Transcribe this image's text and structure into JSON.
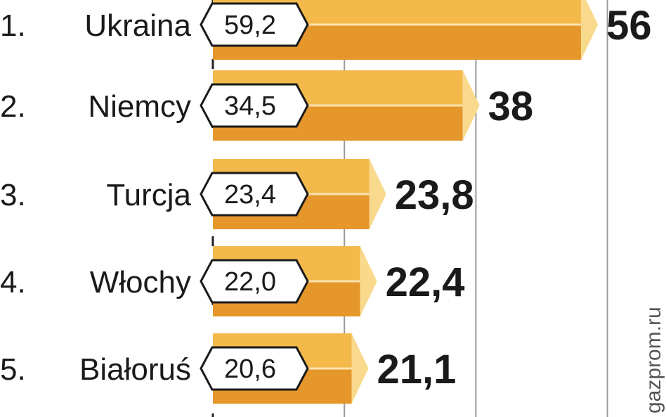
{
  "chart_data": {
    "type": "bar",
    "categories": [
      "Ukraina",
      "Niemcy",
      "Turcja",
      "Włochy",
      "Białoruś"
    ],
    "ranks": [
      "1.",
      "2.",
      "3.",
      "4.",
      "5."
    ],
    "series": [
      {
        "values": [
          59.2,
          34.5,
          23.4,
          22.0,
          20.6
        ]
      },
      {
        "values": [
          56,
          38,
          23.8,
          22.4,
          21.1
        ]
      }
    ],
    "previous_labels": [
      "59,2",
      "34,5",
      "23,4",
      "22,0",
      "20,6"
    ],
    "current_labels": [
      "56",
      "38",
      "23,8",
      "22,4",
      "21,1"
    ],
    "source": "gazprom.ru",
    "grid": true
  },
  "colors": {
    "bar_top": "#f3b94a",
    "bar_bottom": "#e5972c",
    "bar_divider": "#fbe3ad",
    "bar_tip": "#f9d98c",
    "text": "#1a1a1a",
    "gridline": "#9a9a9a",
    "baseline": "#222222"
  }
}
